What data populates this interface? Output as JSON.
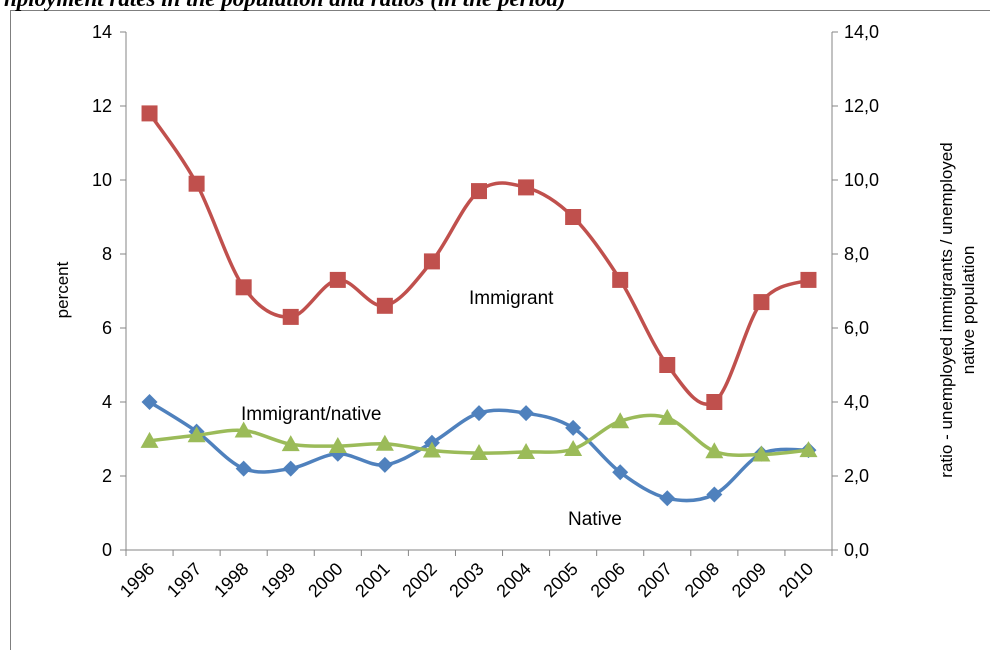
{
  "caption": "nployment rates in the population and ratios (in the period)",
  "chart_data": {
    "type": "line",
    "title": "",
    "categories": [
      "1996",
      "1997",
      "1998",
      "1999",
      "2000",
      "2001",
      "2002",
      "2003",
      "2004",
      "2005",
      "2006",
      "2007",
      "2008",
      "2009",
      "2010"
    ],
    "ylabel": "percent",
    "y2label_line1": "ratio - unemployed immigrants / unemployed",
    "y2label_line2": "native population",
    "ylim": [
      0,
      14
    ],
    "y2lim": [
      0,
      14
    ],
    "y_ticks": [
      "0",
      "2",
      "4",
      "6",
      "8",
      "10",
      "12",
      "14"
    ],
    "y2_ticks": [
      "0,0",
      "2,0",
      "4,0",
      "6,0",
      "8,0",
      "10,0",
      "12,0",
      "14,0"
    ],
    "grid": false,
    "legend": "none (inline labels)",
    "series": [
      {
        "name": "Immigrant",
        "axis": "left",
        "color": "#c0504d",
        "marker": "square",
        "values": [
          11.8,
          9.9,
          7.1,
          6.3,
          7.3,
          6.6,
          7.8,
          9.7,
          9.8,
          9.0,
          7.3,
          5.0,
          4.0,
          6.7,
          7.3
        ]
      },
      {
        "name": "Native",
        "axis": "left",
        "color": "#4f81bd",
        "marker": "diamond",
        "values": [
          4.0,
          3.2,
          2.2,
          2.2,
          2.6,
          2.3,
          2.9,
          3.7,
          3.7,
          3.3,
          2.1,
          1.4,
          1.5,
          2.6,
          2.7
        ]
      },
      {
        "name": "Immigrant/native",
        "axis": "right",
        "color": "#9bbb59",
        "marker": "triangle",
        "values": [
          2.95,
          3.1,
          3.23,
          2.86,
          2.81,
          2.87,
          2.69,
          2.62,
          2.65,
          2.73,
          3.48,
          3.57,
          2.67,
          2.58,
          2.7
        ]
      }
    ]
  }
}
